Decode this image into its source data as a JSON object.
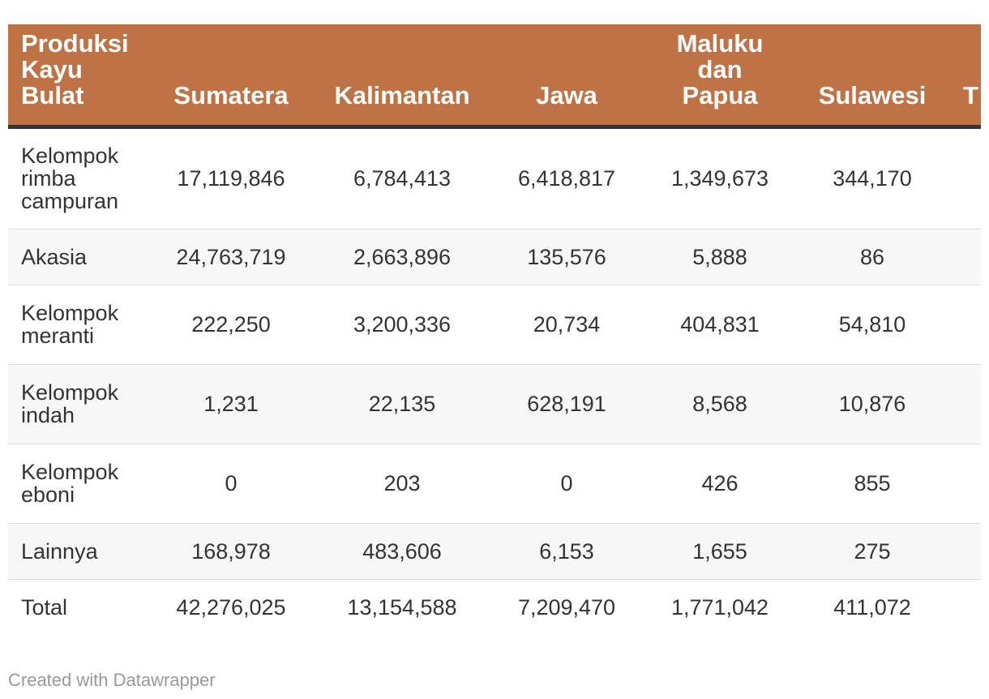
{
  "chart_data": {
    "type": "table",
    "columns": [
      "Produksi Kayu Bulat",
      "Sumatera",
      "Kalimantan",
      "Jawa",
      "Maluku dan Papua",
      "Sulawesi",
      "T"
    ],
    "rows": [
      {
        "label": "Kelompok rimba campuran",
        "values": [
          "17,119,846",
          "6,784,413",
          "6,418,817",
          "1,349,673",
          "344,170",
          ""
        ]
      },
      {
        "label": "Akasia",
        "values": [
          "24,763,719",
          "2,663,896",
          "135,576",
          "5,888",
          "86",
          ""
        ]
      },
      {
        "label": "Kelompok meranti",
        "values": [
          "222,250",
          "3,200,336",
          "20,734",
          "404,831",
          "54,810",
          ""
        ]
      },
      {
        "label": "Kelompok indah",
        "values": [
          "1,231",
          "22,135",
          "628,191",
          "8,568",
          "10,876",
          ""
        ]
      },
      {
        "label": "Kelompok eboni",
        "values": [
          "0",
          "203",
          "0",
          "426",
          "855",
          ""
        ]
      },
      {
        "label": "Lainnya",
        "values": [
          "168,978",
          "483,606",
          "6,153",
          "1,655",
          "275",
          ""
        ]
      },
      {
        "label": "Total",
        "values": [
          "42,276,025",
          "13,154,588",
          "7,209,470",
          "1,771,042",
          "411,072",
          ""
        ]
      }
    ],
    "header_color": "#bf7245"
  },
  "footer": {
    "credit": "Created with Datawrapper"
  }
}
